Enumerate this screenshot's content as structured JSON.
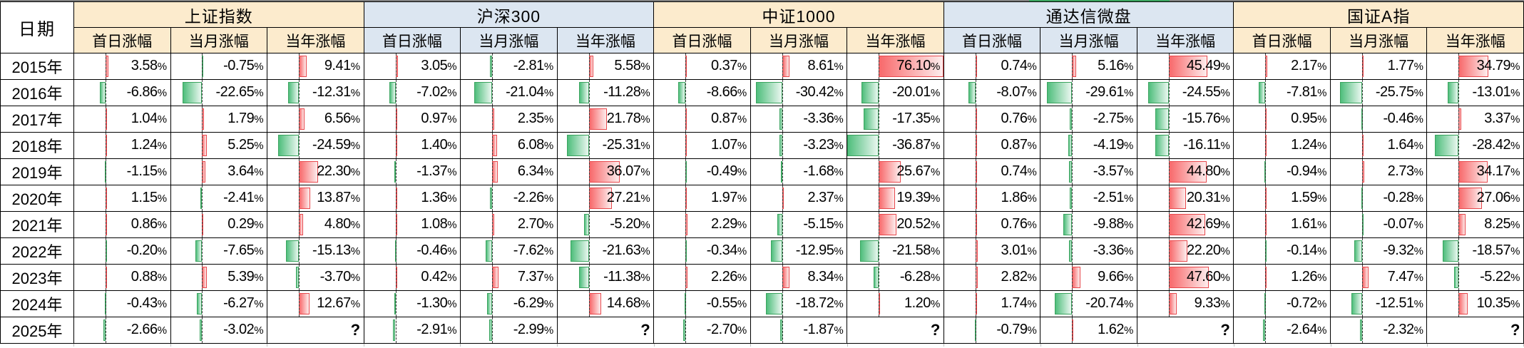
{
  "table": {
    "date_header": "日期",
    "unknown_label": "?",
    "col_headers": [
      "首日涨幅",
      "当月涨幅",
      "当年涨幅"
    ],
    "groups": [
      {
        "name": "上证指数",
        "theme": "yellow"
      },
      {
        "name": "沪深300",
        "theme": "blue"
      },
      {
        "name": "中证1000",
        "theme": "yellow"
      },
      {
        "name": "通达信微盘",
        "theme": "blue"
      },
      {
        "name": "国证A指",
        "theme": "yellow"
      }
    ],
    "rows": [
      {
        "year": "2015年",
        "values": [
          [
            3.58,
            -0.75,
            9.41
          ],
          [
            3.05,
            -2.81,
            5.58
          ],
          [
            0.37,
            8.61,
            76.1
          ],
          [
            0.74,
            5.16,
            45.49
          ],
          [
            2.17,
            1.77,
            34.79
          ]
        ]
      },
      {
        "year": "2016年",
        "values": [
          [
            -6.86,
            -22.65,
            -12.31
          ],
          [
            -7.02,
            -21.04,
            -11.28
          ],
          [
            -8.66,
            -30.42,
            -20.01
          ],
          [
            -8.07,
            -29.61,
            -24.55
          ],
          [
            -7.81,
            -25.75,
            -13.01
          ]
        ]
      },
      {
        "year": "2017年",
        "values": [
          [
            1.04,
            1.79,
            6.56
          ],
          [
            0.97,
            2.35,
            21.78
          ],
          [
            0.87,
            -3.36,
            -17.35
          ],
          [
            0.76,
            -2.75,
            -15.76
          ],
          [
            0.95,
            -0.46,
            3.37
          ]
        ]
      },
      {
        "year": "2018年",
        "values": [
          [
            1.24,
            5.25,
            -24.59
          ],
          [
            1.4,
            6.08,
            -25.31
          ],
          [
            1.07,
            -3.23,
            -36.87
          ],
          [
            0.87,
            -4.19,
            -16.11
          ],
          [
            1.24,
            1.64,
            -28.42
          ]
        ]
      },
      {
        "year": "2019年",
        "values": [
          [
            -1.15,
            3.64,
            22.3
          ],
          [
            -1.37,
            6.34,
            36.07
          ],
          [
            -0.49,
            -1.68,
            25.67
          ],
          [
            0.74,
            -3.57,
            44.8
          ],
          [
            -0.94,
            2.73,
            34.17
          ]
        ]
      },
      {
        "year": "2020年",
        "values": [
          [
            1.15,
            -2.41,
            13.87
          ],
          [
            1.36,
            -2.26,
            27.21
          ],
          [
            1.97,
            2.37,
            19.39
          ],
          [
            1.86,
            -2.51,
            20.31
          ],
          [
            1.59,
            -0.28,
            27.06
          ]
        ]
      },
      {
        "year": "2021年",
        "values": [
          [
            0.86,
            0.29,
            4.8
          ],
          [
            1.08,
            2.7,
            -5.2
          ],
          [
            2.29,
            -5.15,
            20.52
          ],
          [
            0.76,
            -9.88,
            42.69
          ],
          [
            1.61,
            -0.07,
            8.25
          ]
        ]
      },
      {
        "year": "2022年",
        "values": [
          [
            -0.2,
            -7.65,
            -15.13
          ],
          [
            -0.46,
            -7.62,
            -21.63
          ],
          [
            -0.34,
            -12.95,
            -21.58
          ],
          [
            3.01,
            -3.36,
            22.2
          ],
          [
            -0.14,
            -9.32,
            -18.57
          ]
        ]
      },
      {
        "year": "2023年",
        "values": [
          [
            0.88,
            5.39,
            -3.7
          ],
          [
            0.42,
            7.37,
            -11.38
          ],
          [
            2.26,
            8.34,
            -6.28
          ],
          [
            2.82,
            9.66,
            47.6
          ],
          [
            1.26,
            7.47,
            -5.22
          ]
        ]
      },
      {
        "year": "2024年",
        "values": [
          [
            -0.43,
            -6.27,
            12.67
          ],
          [
            -1.3,
            -6.29,
            14.68
          ],
          [
            -0.55,
            -18.72,
            1.2
          ],
          [
            1.74,
            -20.74,
            9.33
          ],
          [
            -0.72,
            -12.51,
            10.35
          ]
        ]
      },
      {
        "year": "2025年",
        "values": [
          [
            -2.66,
            -3.02,
            null
          ],
          [
            -2.91,
            -2.99,
            null
          ],
          [
            -2.7,
            -1.87,
            null
          ],
          [
            -0.79,
            1.62,
            null
          ],
          [
            -2.64,
            -2.32,
            null
          ]
        ]
      }
    ],
    "databar": {
      "min": -36.87,
      "max": 76.1
    }
  },
  "colors": {
    "header_yellow": "#FCEBCD",
    "header_blue": "#DCE6F1",
    "bar_positive": "#F8696B",
    "bar_positive_border": "#E8494D",
    "bar_negative": "#4FBE7C",
    "bar_negative_border": "#3BA45F",
    "axis_dash": "#3A3A3A",
    "top_edge_gray": "#7F7F7F",
    "faint_grid_gray": "#BFBFBF"
  }
}
